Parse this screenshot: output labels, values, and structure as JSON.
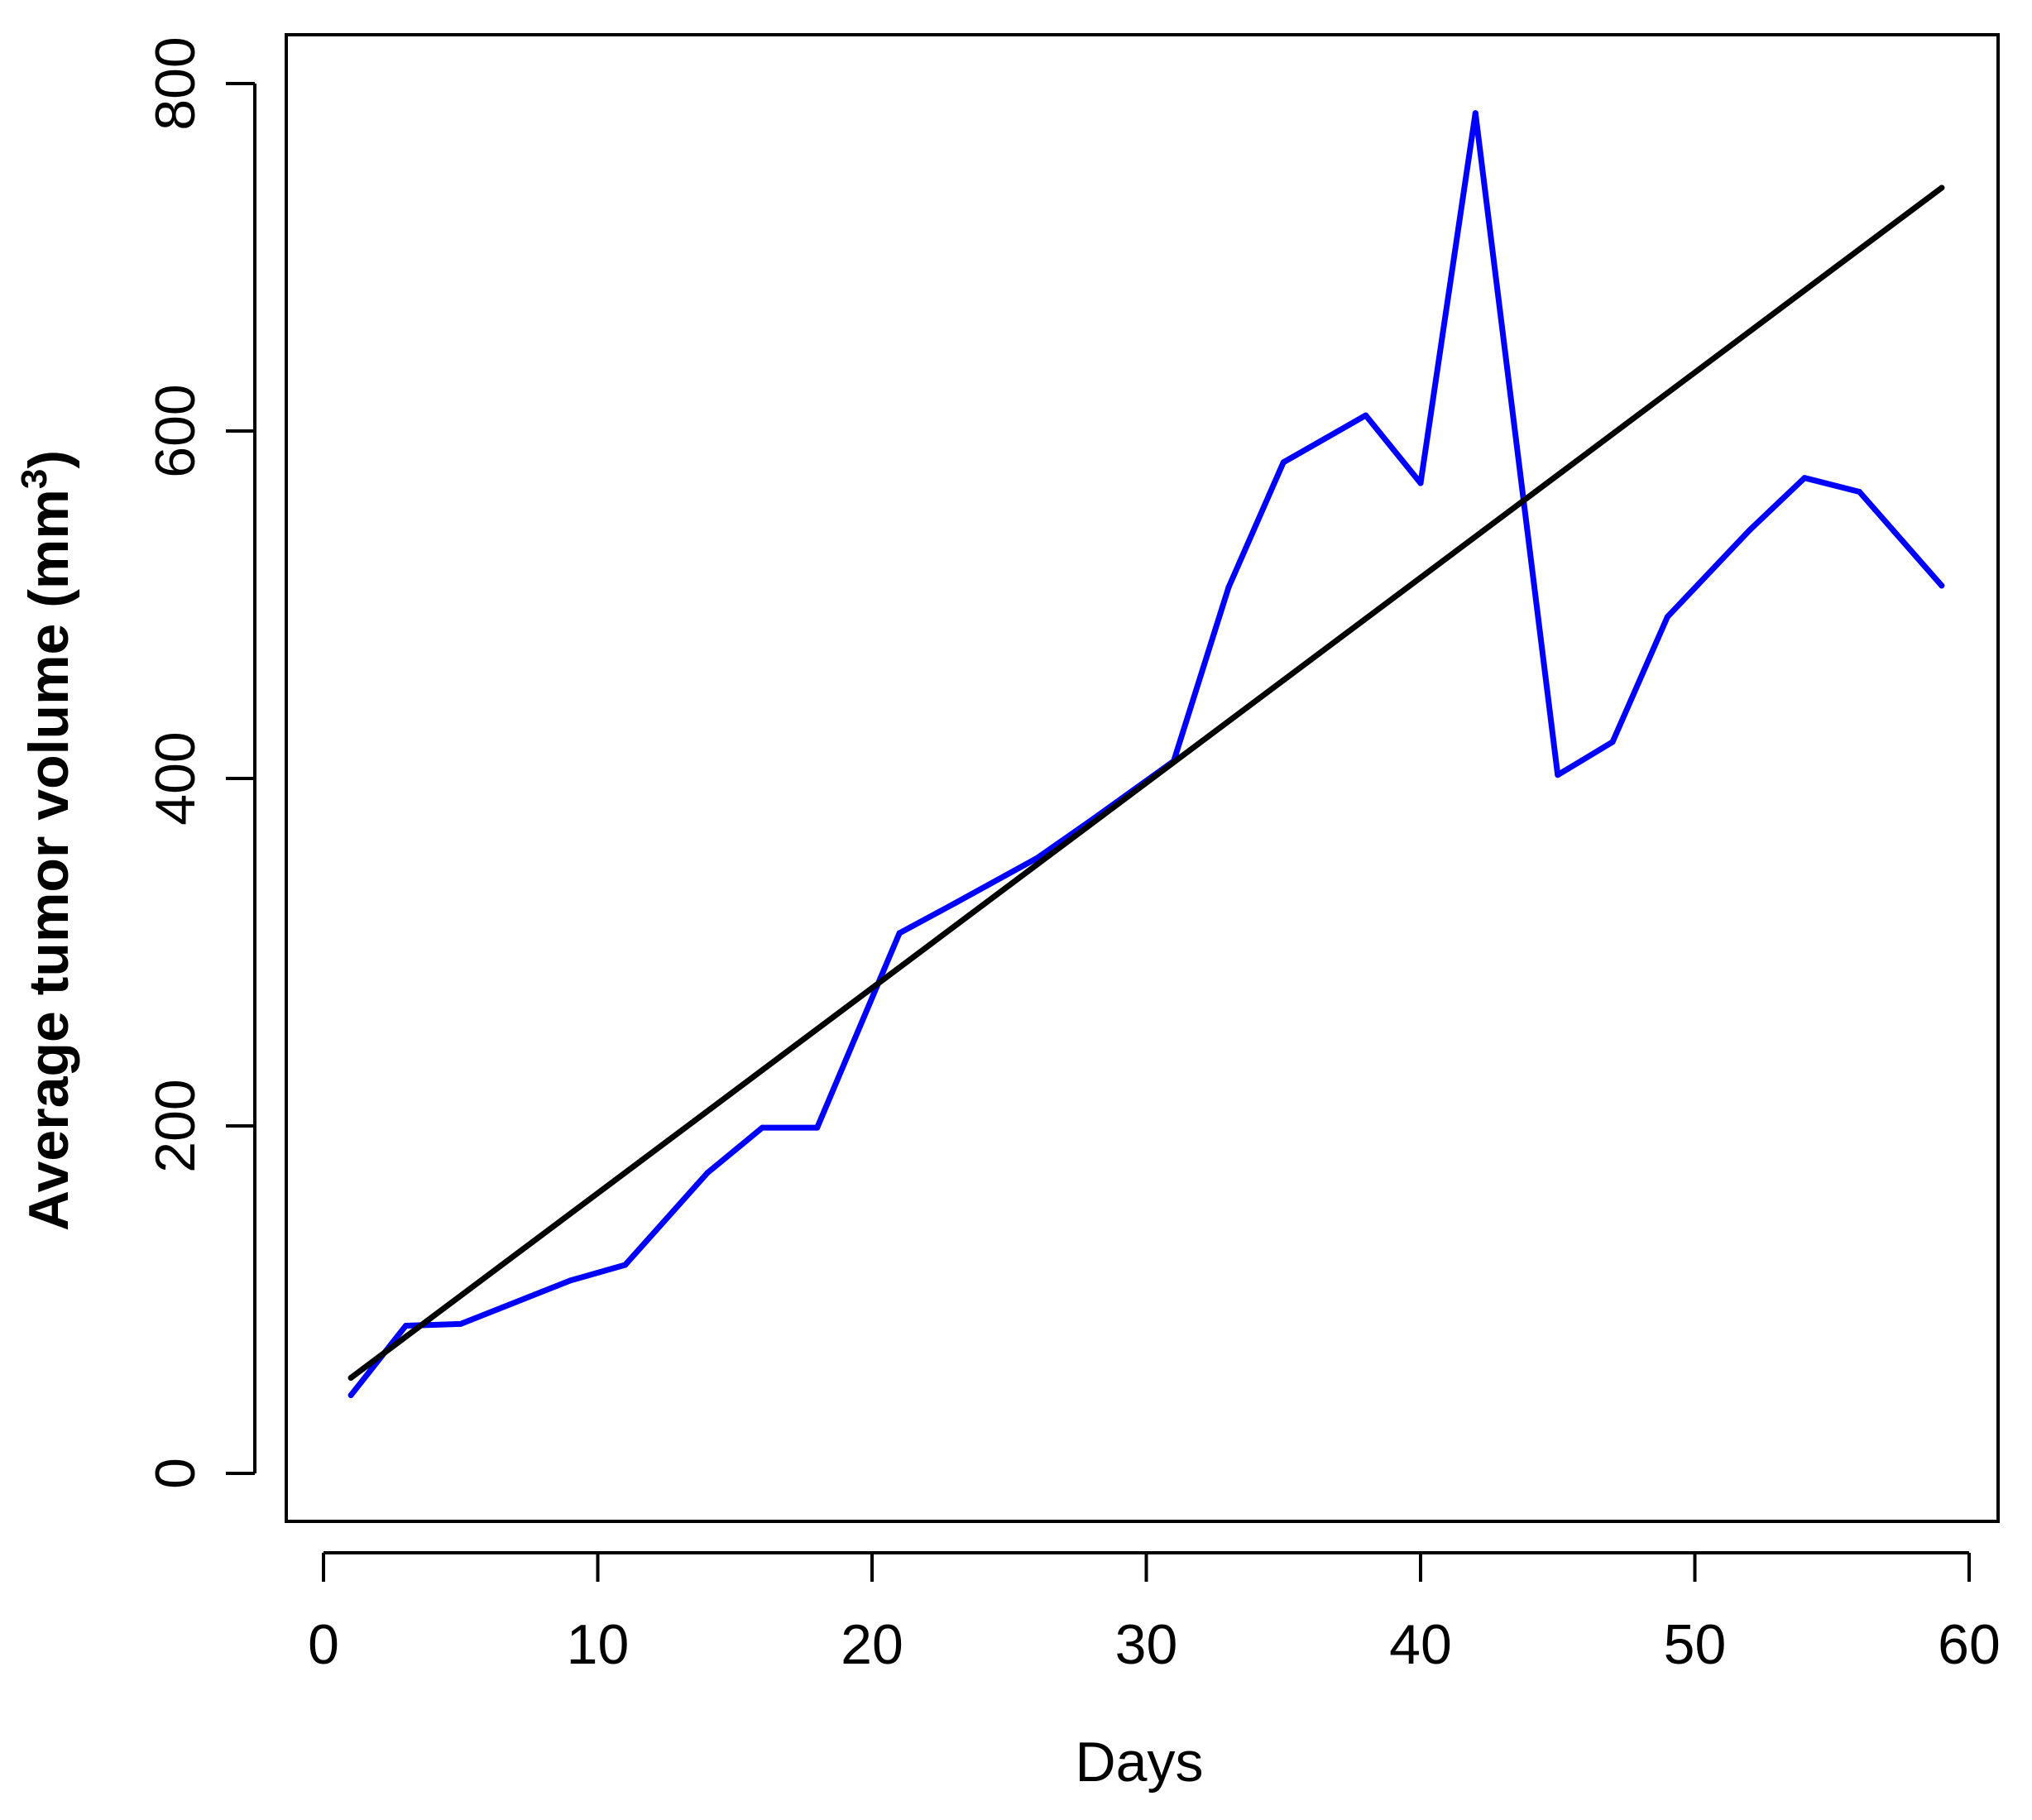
{
  "chart_data": {
    "type": "line",
    "title": "",
    "xlabel": "Days",
    "ylabel": "Average tumor volume (mm",
    "ylabel_superscript": "3",
    "ylabel_suffix": ")",
    "xlim": [
      0,
      60
    ],
    "ylim": [
      0,
      800
    ],
    "xticks": [
      0,
      10,
      20,
      30,
      40,
      50,
      60
    ],
    "yticks": [
      0,
      200,
      400,
      600,
      800
    ],
    "grid": false,
    "series": [
      {
        "color": "#0000ff",
        "x": [
          1,
          3,
          5,
          9,
          11,
          14,
          16,
          18,
          21,
          23,
          26,
          28,
          31,
          33,
          35,
          38,
          40,
          42,
          45,
          47,
          49,
          52,
          54,
          56,
          59
        ],
        "y": [
          45,
          85,
          86,
          111,
          120,
          173,
          199,
          199,
          311,
          328,
          354,
          376,
          410,
          510,
          582,
          609,
          570,
          783,
          402,
          421,
          493,
          543,
          573,
          565,
          511
        ]
      },
      {
        "color": "#000000",
        "x": [
          1,
          59
        ],
        "y": [
          55,
          740
        ]
      }
    ]
  }
}
